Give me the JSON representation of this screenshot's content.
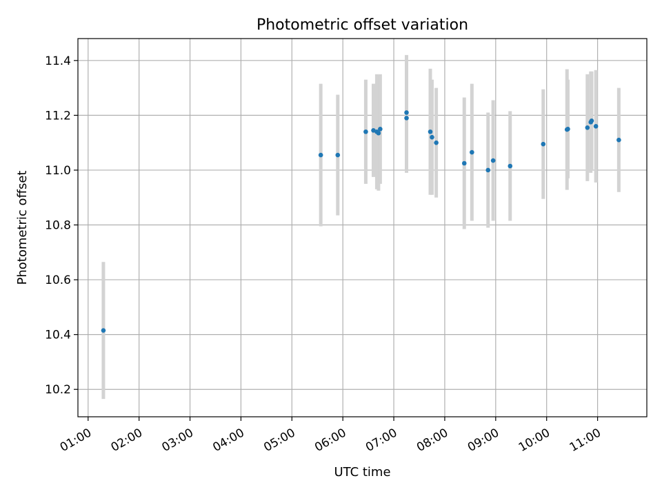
{
  "chart_data": {
    "type": "scatter",
    "title": "Photometric offset variation",
    "xlabel": "UTC time",
    "ylabel": "Photometric offset",
    "x_ticks": [
      "01:00",
      "02:00",
      "03:00",
      "04:00",
      "05:00",
      "06:00",
      "07:00",
      "08:00",
      "09:00",
      "10:00",
      "11:00"
    ],
    "y_ticks": [
      "10.2",
      "10.4",
      "10.6",
      "10.8",
      "11.0",
      "11.2",
      "11.4"
    ],
    "xlim": [
      "00:48",
      "11:58"
    ],
    "ylim": [
      10.1,
      11.48
    ],
    "grid": true,
    "marker_color": "#1f77b4",
    "errorbar_color": "#d3d3d3",
    "points": [
      {
        "x": "01:18",
        "y": 10.415,
        "err": 0.25
      },
      {
        "x": "05:34",
        "y": 11.055,
        "err": 0.26
      },
      {
        "x": "05:54",
        "y": 11.055,
        "err": 0.22
      },
      {
        "x": "06:27",
        "y": 11.14,
        "err": 0.19
      },
      {
        "x": "06:36",
        "y": 11.145,
        "err": 0.17
      },
      {
        "x": "06:40",
        "y": 11.14,
        "err": 0.21
      },
      {
        "x": "06:42",
        "y": 11.135,
        "err": 0.21
      },
      {
        "x": "06:44",
        "y": 11.15,
        "err": 0.2
      },
      {
        "x": "07:15",
        "y": 11.21,
        "err": 0.21
      },
      {
        "x": "07:15",
        "y": 11.19,
        "err": 0.2
      },
      {
        "x": "07:43",
        "y": 11.14,
        "err": 0.23
      },
      {
        "x": "07:45",
        "y": 11.12,
        "err": 0.21
      },
      {
        "x": "07:50",
        "y": 11.1,
        "err": 0.2
      },
      {
        "x": "08:23",
        "y": 11.025,
        "err": 0.24
      },
      {
        "x": "08:32",
        "y": 11.065,
        "err": 0.25
      },
      {
        "x": "08:51",
        "y": 11.0,
        "err": 0.21
      },
      {
        "x": "08:57",
        "y": 11.035,
        "err": 0.22
      },
      {
        "x": "09:17",
        "y": 11.015,
        "err": 0.2
      },
      {
        "x": "09:56",
        "y": 11.095,
        "err": 0.2
      },
      {
        "x": "10:24",
        "y": 11.148,
        "err": 0.22
      },
      {
        "x": "10:25",
        "y": 11.15,
        "err": 0.18
      },
      {
        "x": "10:48",
        "y": 11.155,
        "err": 0.195
      },
      {
        "x": "10:52",
        "y": 11.175,
        "err": 0.185
      },
      {
        "x": "10:53",
        "y": 11.18,
        "err": 0.18
      },
      {
        "x": "10:58",
        "y": 11.16,
        "err": 0.205
      },
      {
        "x": "11:25",
        "y": 11.11,
        "err": 0.19
      }
    ]
  }
}
